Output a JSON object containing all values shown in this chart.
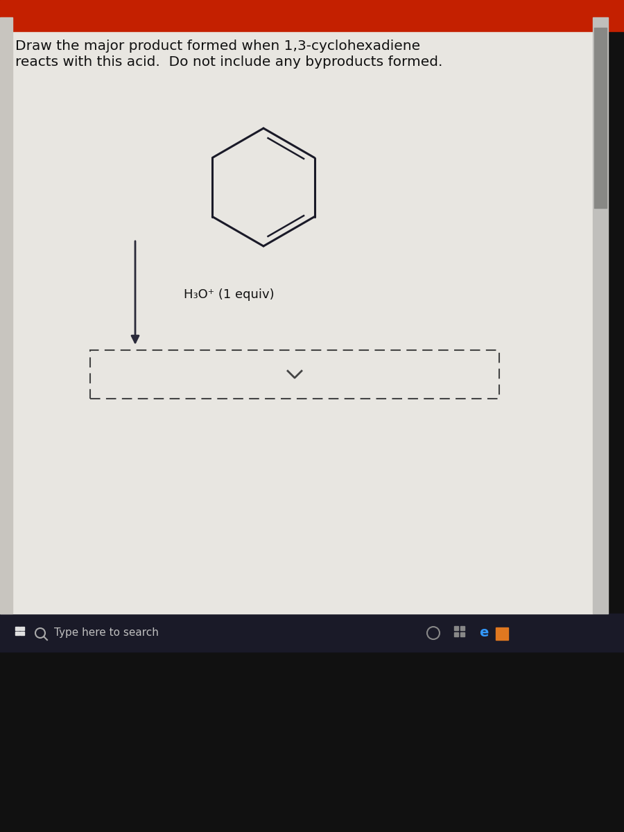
{
  "title_line1": "Draw the major product formed when 1,3-cyclohexadiene",
  "title_line2": "reacts with this acid.  Do not include any byproducts formed.",
  "reagent_label": "H₃O⁺ (1 equiv)",
  "background_color": "#d8d5cf",
  "content_bg": "#e8e6e1",
  "top_bar_color": "#c42000",
  "text_color": "#111111",
  "arrow_color": "#2a2a3a",
  "dashed_box_color": "#444444",
  "taskbar_color": "#1a1a28",
  "taskbar_text": "Type here to search",
  "scrollbar_bg": "#b0b0b0",
  "scrollbar_thumb": "#888888",
  "fig_width": 9.0,
  "fig_height": 12.0
}
